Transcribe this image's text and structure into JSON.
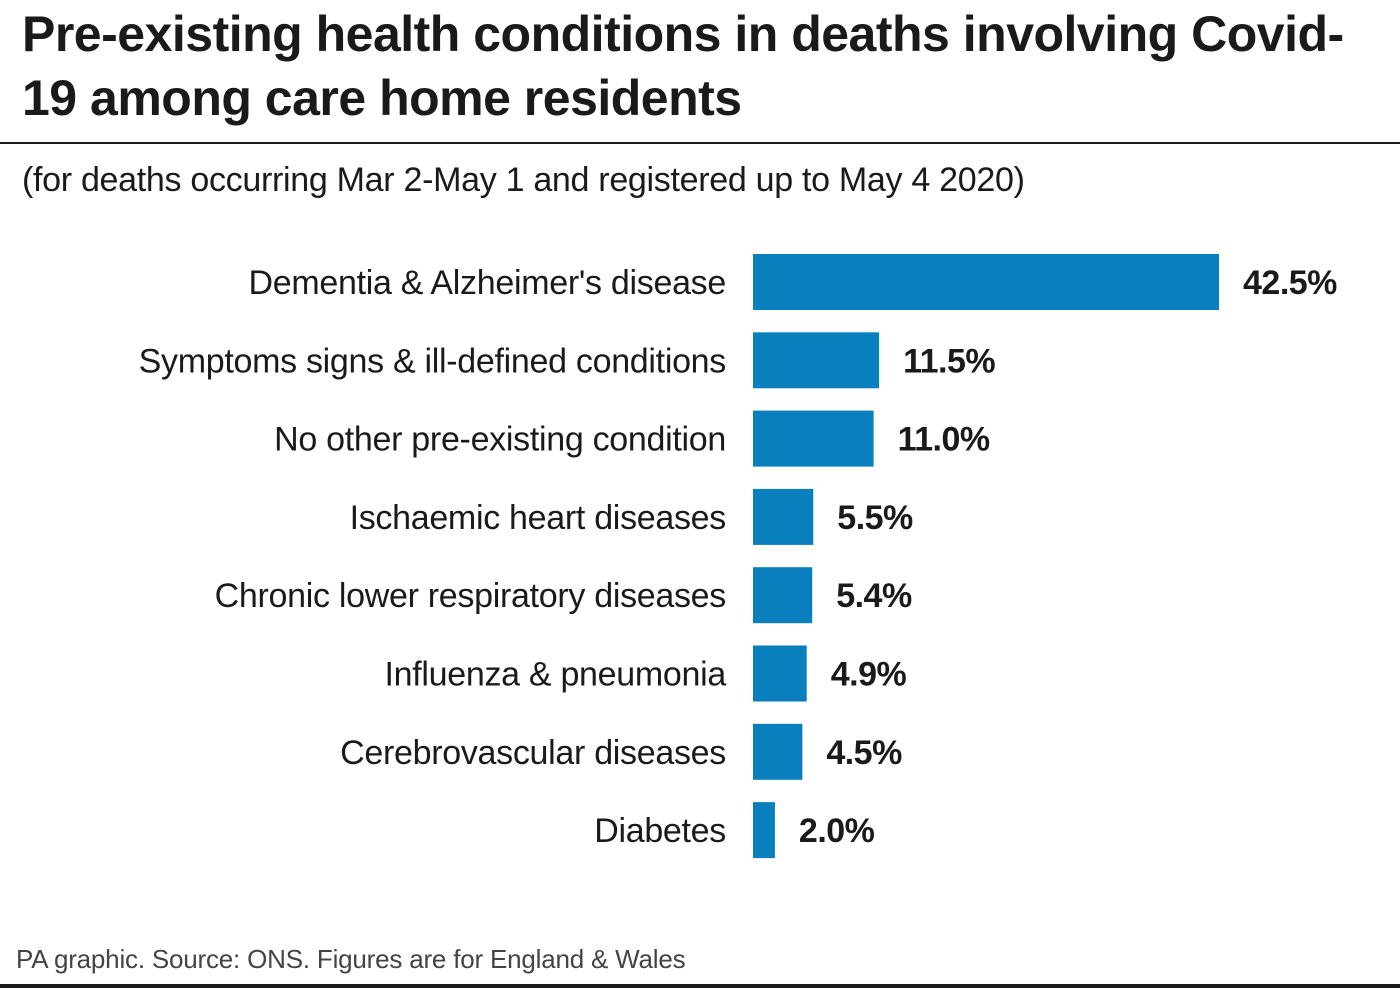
{
  "chart_data": {
    "type": "bar",
    "orientation": "horizontal",
    "title": "Pre-existing health conditions in deaths involving Covid-19 among care home residents",
    "subtitle": "(for deaths occurring Mar 2-May 1 and registered up to May 4 2020)",
    "categories": [
      "Dementia & Alzheimer's disease",
      "Symptoms signs & ill-defined conditions",
      "No other pre-existing condition",
      "Ischaemic heart diseases",
      "Chronic lower respiratory diseases",
      "Influenza & pneumonia",
      "Cerebrovascular diseases",
      "Diabetes"
    ],
    "values": [
      42.5,
      11.5,
      11.0,
      5.5,
      5.4,
      4.9,
      4.5,
      2.0
    ],
    "value_labels": [
      "42.5%",
      "11.5%",
      "11.0%",
      "5.5%",
      "5.4%",
      "4.9%",
      "4.5%",
      "2.0%"
    ],
    "unit": "%",
    "xlim": [
      0,
      42.5
    ],
    "grid": false,
    "legend": "none",
    "bar_color": "#0a7fbe"
  },
  "source": "PA graphic. Source: ONS. Figures are for England & Wales"
}
